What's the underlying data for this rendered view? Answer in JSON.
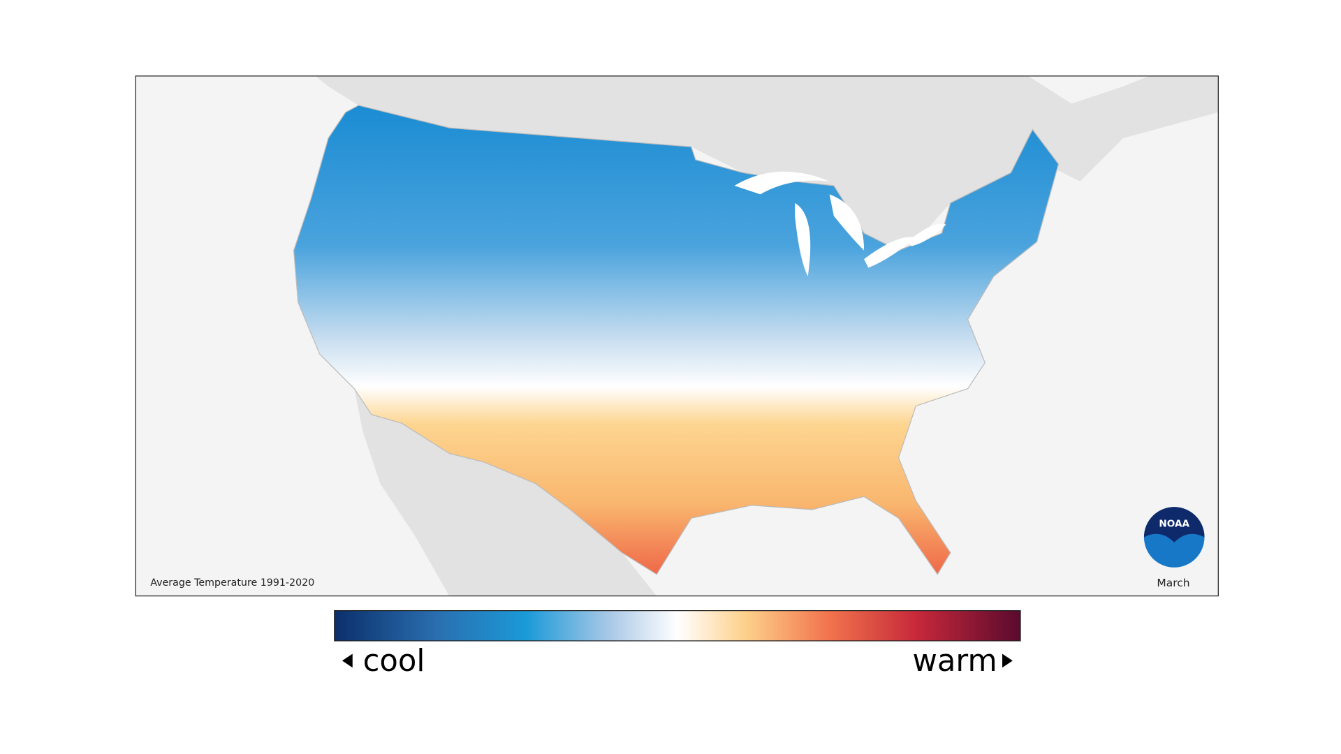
{
  "map": {
    "caption": "Average Temperature 1991-2020",
    "month": "March",
    "logo": "NOAA"
  },
  "legend": {
    "low_label": "cool",
    "high_label": "warm"
  }
}
